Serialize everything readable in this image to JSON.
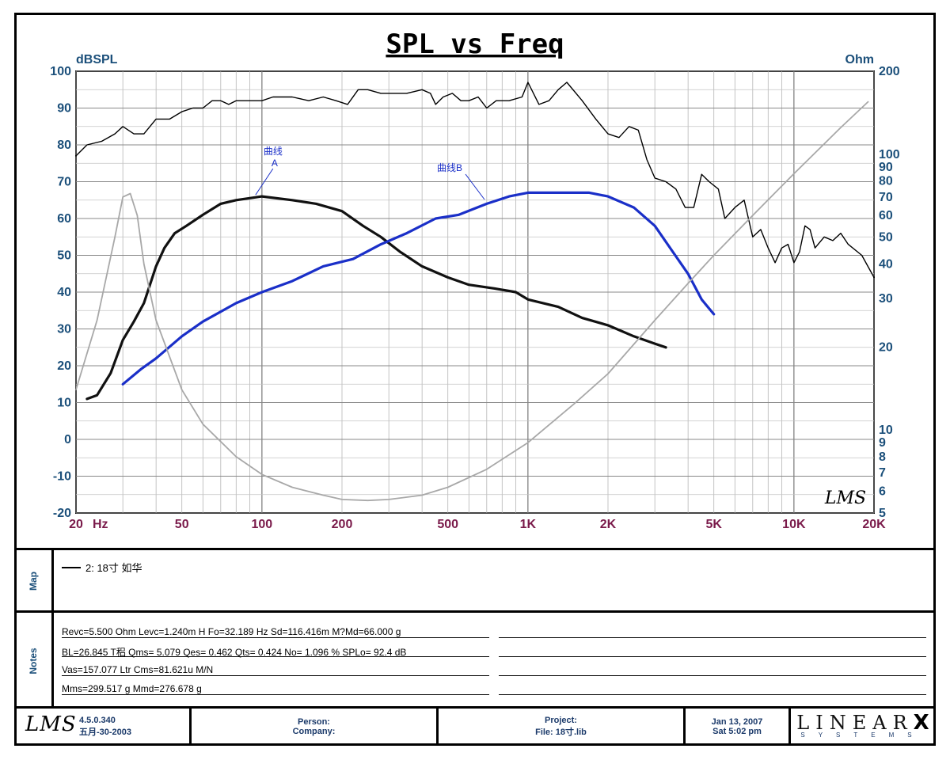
{
  "chart_data": {
    "type": "line",
    "title": "SPL vs Freq",
    "ylabel_left": "dBSPL",
    "ylabel_right": "Ohm",
    "xscale": "log",
    "xlim": [
      20,
      20000
    ],
    "ylim": [
      -20,
      100
    ],
    "ylim_right": [
      5,
      200
    ],
    "yscale_right": "log",
    "grid": true,
    "x_ticks": [
      {
        "value": 20,
        "label": "20"
      },
      {
        "value": 50,
        "label": "50"
      },
      {
        "value": 100,
        "label": "100"
      },
      {
        "value": 200,
        "label": "200"
      },
      {
        "value": 500,
        "label": "500"
      },
      {
        "value": 1000,
        "label": "1K"
      },
      {
        "value": 2000,
        "label": "2K"
      },
      {
        "value": 5000,
        "label": "5K"
      },
      {
        "value": 10000,
        "label": "10K"
      },
      {
        "value": 20000,
        "label": "20K"
      }
    ],
    "x_unit": "Hz",
    "y_ticks_left": [
      -20,
      -10,
      0,
      10,
      20,
      30,
      40,
      50,
      60,
      70,
      80,
      90,
      100
    ],
    "y_ticks_right": [
      {
        "value": 5,
        "label": "5"
      },
      {
        "value": 6,
        "label": "6"
      },
      {
        "value": 7,
        "label": "7"
      },
      {
        "value": 8,
        "label": "8"
      },
      {
        "value": 9,
        "label": "9"
      },
      {
        "value": 10,
        "label": "10"
      },
      {
        "value": 20,
        "label": "20"
      },
      {
        "value": 30,
        "label": "30"
      },
      {
        "value": 40,
        "label": "40"
      },
      {
        "value": 50,
        "label": "50"
      },
      {
        "value": 60,
        "label": "60"
      },
      {
        "value": 70,
        "label": "70"
      },
      {
        "value": 80,
        "label": "80"
      },
      {
        "value": 90,
        "label": "90"
      },
      {
        "value": 100,
        "label": "100"
      },
      {
        "value": 200,
        "label": "200"
      }
    ],
    "series": [
      {
        "name": "2: 18寸  如华",
        "axis": "left",
        "color": "#000000",
        "points": [
          [
            20,
            77
          ],
          [
            22,
            80
          ],
          [
            25,
            81
          ],
          [
            28,
            83
          ],
          [
            30,
            85
          ],
          [
            33,
            83
          ],
          [
            36,
            83
          ],
          [
            40,
            87
          ],
          [
            45,
            87
          ],
          [
            50,
            89
          ],
          [
            55,
            90
          ],
          [
            60,
            90
          ],
          [
            65,
            92
          ],
          [
            70,
            92
          ],
          [
            75,
            91
          ],
          [
            80,
            92
          ],
          [
            90,
            92
          ],
          [
            100,
            92
          ],
          [
            110,
            93
          ],
          [
            130,
            93
          ],
          [
            150,
            92
          ],
          [
            170,
            93
          ],
          [
            190,
            92
          ],
          [
            210,
            91
          ],
          [
            230,
            95
          ],
          [
            250,
            95
          ],
          [
            280,
            94
          ],
          [
            300,
            94
          ],
          [
            350,
            94
          ],
          [
            400,
            95
          ],
          [
            430,
            94
          ],
          [
            450,
            91
          ],
          [
            480,
            93
          ],
          [
            520,
            94
          ],
          [
            560,
            92
          ],
          [
            600,
            92
          ],
          [
            650,
            93
          ],
          [
            700,
            90
          ],
          [
            760,
            92
          ],
          [
            850,
            92
          ],
          [
            950,
            93
          ],
          [
            1000,
            97
          ],
          [
            1100,
            91
          ],
          [
            1200,
            92
          ],
          [
            1300,
            95
          ],
          [
            1400,
            97
          ],
          [
            1600,
            92
          ],
          [
            1800,
            87
          ],
          [
            2000,
            83
          ],
          [
            2200,
            82
          ],
          [
            2400,
            85
          ],
          [
            2600,
            84
          ],
          [
            2800,
            76
          ],
          [
            3000,
            71
          ],
          [
            3300,
            70
          ],
          [
            3600,
            68
          ],
          [
            3900,
            63
          ],
          [
            4200,
            63
          ],
          [
            4500,
            72
          ],
          [
            4800,
            70
          ],
          [
            5200,
            68
          ],
          [
            5500,
            60
          ],
          [
            6000,
            63
          ],
          [
            6500,
            65
          ],
          [
            7000,
            55
          ],
          [
            7500,
            57
          ],
          [
            8000,
            52
          ],
          [
            8500,
            48
          ],
          [
            9000,
            52
          ],
          [
            9500,
            53
          ],
          [
            10000,
            48
          ],
          [
            10500,
            51
          ],
          [
            11000,
            58
          ],
          [
            11500,
            57
          ],
          [
            12000,
            52
          ],
          [
            13000,
            55
          ],
          [
            14000,
            54
          ],
          [
            15000,
            56
          ],
          [
            16000,
            53
          ],
          [
            18000,
            50
          ],
          [
            20000,
            44
          ]
        ]
      },
      {
        "name": "曲线A",
        "axis": "left",
        "color": "#111111",
        "points": [
          [
            22,
            11
          ],
          [
            24,
            12
          ],
          [
            27,
            18
          ],
          [
            30,
            27
          ],
          [
            33,
            32
          ],
          [
            36,
            37
          ],
          [
            40,
            47
          ],
          [
            43,
            52
          ],
          [
            47,
            56
          ],
          [
            52,
            58
          ],
          [
            60,
            61
          ],
          [
            70,
            64
          ],
          [
            80,
            65
          ],
          [
            100,
            66
          ],
          [
            130,
            65
          ],
          [
            160,
            64
          ],
          [
            200,
            62
          ],
          [
            240,
            58
          ],
          [
            280,
            55
          ],
          [
            330,
            51
          ],
          [
            400,
            47
          ],
          [
            500,
            44
          ],
          [
            600,
            42
          ],
          [
            750,
            41
          ],
          [
            900,
            40
          ],
          [
            1000,
            38
          ],
          [
            1300,
            36
          ],
          [
            1600,
            33
          ],
          [
            2000,
            31
          ],
          [
            2500,
            28
          ],
          [
            3000,
            26
          ],
          [
            3300,
            25
          ]
        ]
      },
      {
        "name": "曲线B",
        "axis": "left",
        "color": "#1a2fc8",
        "points": [
          [
            30,
            15
          ],
          [
            35,
            19
          ],
          [
            40,
            22
          ],
          [
            50,
            28
          ],
          [
            60,
            32
          ],
          [
            80,
            37
          ],
          [
            100,
            40
          ],
          [
            130,
            43
          ],
          [
            170,
            47
          ],
          [
            220,
            49
          ],
          [
            280,
            53
          ],
          [
            350,
            56
          ],
          [
            450,
            60
          ],
          [
            550,
            61
          ],
          [
            700,
            64
          ],
          [
            850,
            66
          ],
          [
            1000,
            67
          ],
          [
            1300,
            67
          ],
          [
            1700,
            67
          ],
          [
            2000,
            66
          ],
          [
            2500,
            63
          ],
          [
            3000,
            58
          ],
          [
            3500,
            51
          ],
          [
            4000,
            45
          ],
          [
            4500,
            38
          ],
          [
            5000,
            34
          ]
        ]
      },
      {
        "name": "Impedance",
        "axis": "right",
        "color": "#a8a8a8",
        "points": [
          [
            20,
            14
          ],
          [
            24,
            25
          ],
          [
            28,
            50
          ],
          [
            30,
            70
          ],
          [
            32,
            72
          ],
          [
            34,
            60
          ],
          [
            36,
            40
          ],
          [
            40,
            25
          ],
          [
            50,
            14
          ],
          [
            60,
            10.5
          ],
          [
            80,
            8
          ],
          [
            100,
            6.9
          ],
          [
            130,
            6.2
          ],
          [
            170,
            5.8
          ],
          [
            200,
            5.6
          ],
          [
            250,
            5.55
          ],
          [
            300,
            5.6
          ],
          [
            400,
            5.8
          ],
          [
            500,
            6.2
          ],
          [
            700,
            7.2
          ],
          [
            1000,
            9
          ],
          [
            1500,
            12.5
          ],
          [
            2000,
            16
          ],
          [
            3000,
            25
          ],
          [
            4000,
            34
          ],
          [
            5000,
            43
          ],
          [
            7000,
            60
          ],
          [
            10000,
            85
          ],
          [
            15000,
            125
          ],
          [
            19000,
            155
          ]
        ]
      }
    ],
    "annotations": [
      {
        "text_line1": "曲线",
        "text_line2": "A",
        "x": 100,
        "y": 66
      },
      {
        "text": "曲线B",
        "x": 700,
        "y": 64
      }
    ]
  },
  "map_label": "Map",
  "legend_entry": "2: 18寸   如华",
  "notes_label": "Notes",
  "notes": [
    "Revc=5.500 Ohm  Levc=1.240m H  Fo=32.189 Hz  Sd=116.416m M?Md=66.000 g",
    "BL=26.845 T稆  Qms= 5.079  Qes= 0.462  Qts= 0.424  No= 1.096 %  SPLo= 92.4 dB",
    "Vas=157.077 Ltr  Cms=81.621u M/N",
    "Mms=299.517 g  Mmd=276.678 g"
  ],
  "footer": {
    "logo": "LMS",
    "version": "4.5.0.340",
    "version_date": "五月-30-2003",
    "person_label": "Person:",
    "company_label": "Company:",
    "project_label": "Project:",
    "file_label": "File: 18寸.lib",
    "date": "Jan 13, 2007",
    "time": "Sat  5:02 pm",
    "brand_main": "LINEAR",
    "brand_x": "X",
    "brand_sub": "SYSTEMS"
  },
  "watermark": "LMS"
}
